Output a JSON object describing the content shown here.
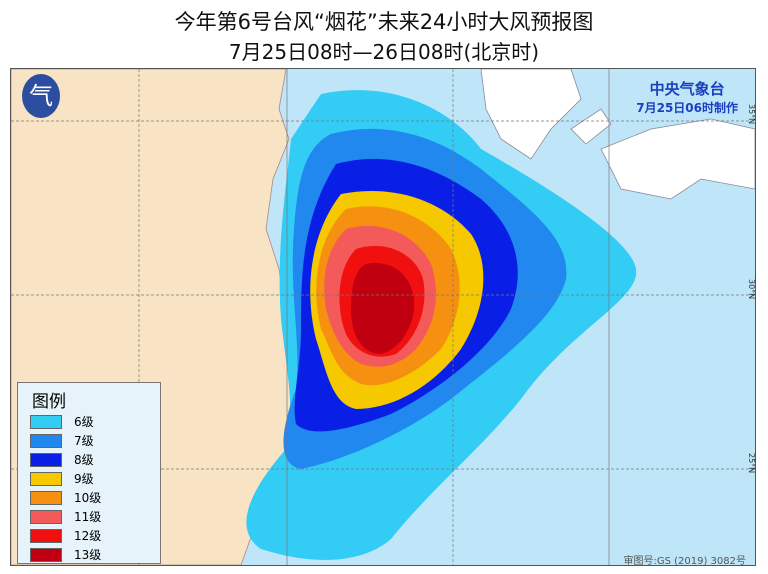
{
  "title": "今年第6号台风“烟花”未来24小时大风预报图",
  "subtitle": "7月25日08时—26日08时(北京时)",
  "agency": {
    "name": "中央气象台",
    "made": "7月25日06时制作"
  },
  "legend": {
    "title": "图例",
    "items": [
      {
        "label": "6级",
        "color": "#33ccf5"
      },
      {
        "label": "7级",
        "color": "#2188f0"
      },
      {
        "label": "8级",
        "color": "#0a1fe6"
      },
      {
        "label": "9级",
        "color": "#f5c800"
      },
      {
        "label": "10级",
        "color": "#f59010"
      },
      {
        "label": "11级",
        "color": "#f55a5a"
      },
      {
        "label": "12级",
        "color": "#f01010"
      },
      {
        "label": "13级",
        "color": "#c00010"
      }
    ]
  },
  "lat_labels": [
    "35°N",
    "30°N",
    "25°N"
  ],
  "approval": "审图号:GS (2019) 3082号",
  "colors": {
    "land": "#f8e4c4",
    "sea": "#bfe6f8"
  }
}
